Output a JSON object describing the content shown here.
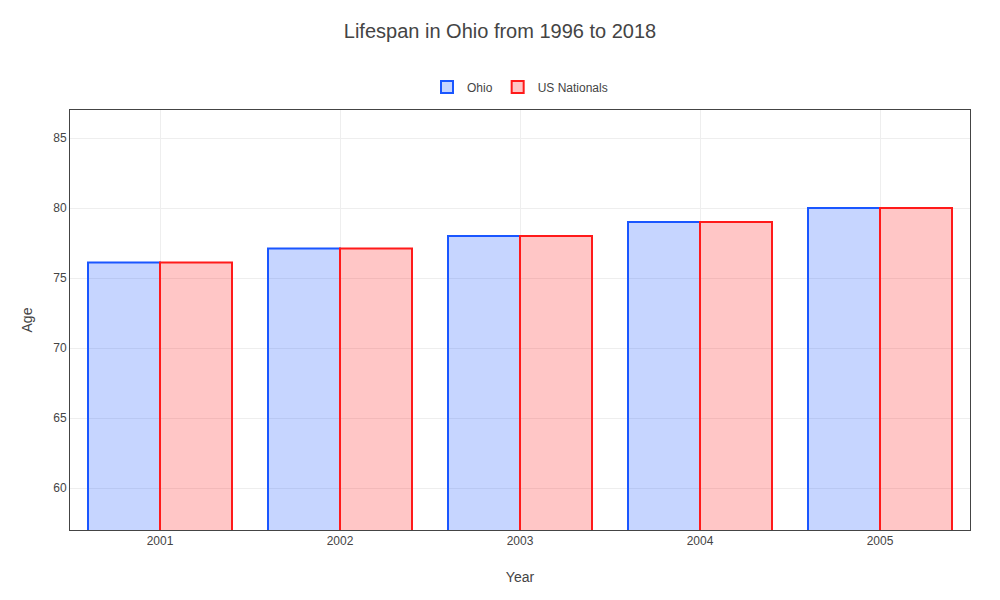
{
  "chart_data": {
    "type": "bar",
    "title": "Lifespan in Ohio from 1996 to 2018",
    "xlabel": "Year",
    "ylabel": "Age",
    "categories": [
      "2001",
      "2002",
      "2003",
      "2004",
      "2005"
    ],
    "series": [
      {
        "name": "Ohio",
        "color": "#1a56ff",
        "values": [
          76.1,
          77.1,
          78.0,
          79.0,
          80.0
        ]
      },
      {
        "name": "US Nationals",
        "color": "#ff1a1a",
        "values": [
          76.1,
          77.1,
          78.0,
          79.0,
          80.0
        ]
      }
    ],
    "ylim": [
      57,
      87
    ],
    "yticks": [
      60,
      65,
      70,
      75,
      80,
      85
    ],
    "grid": true,
    "legend": "top"
  }
}
